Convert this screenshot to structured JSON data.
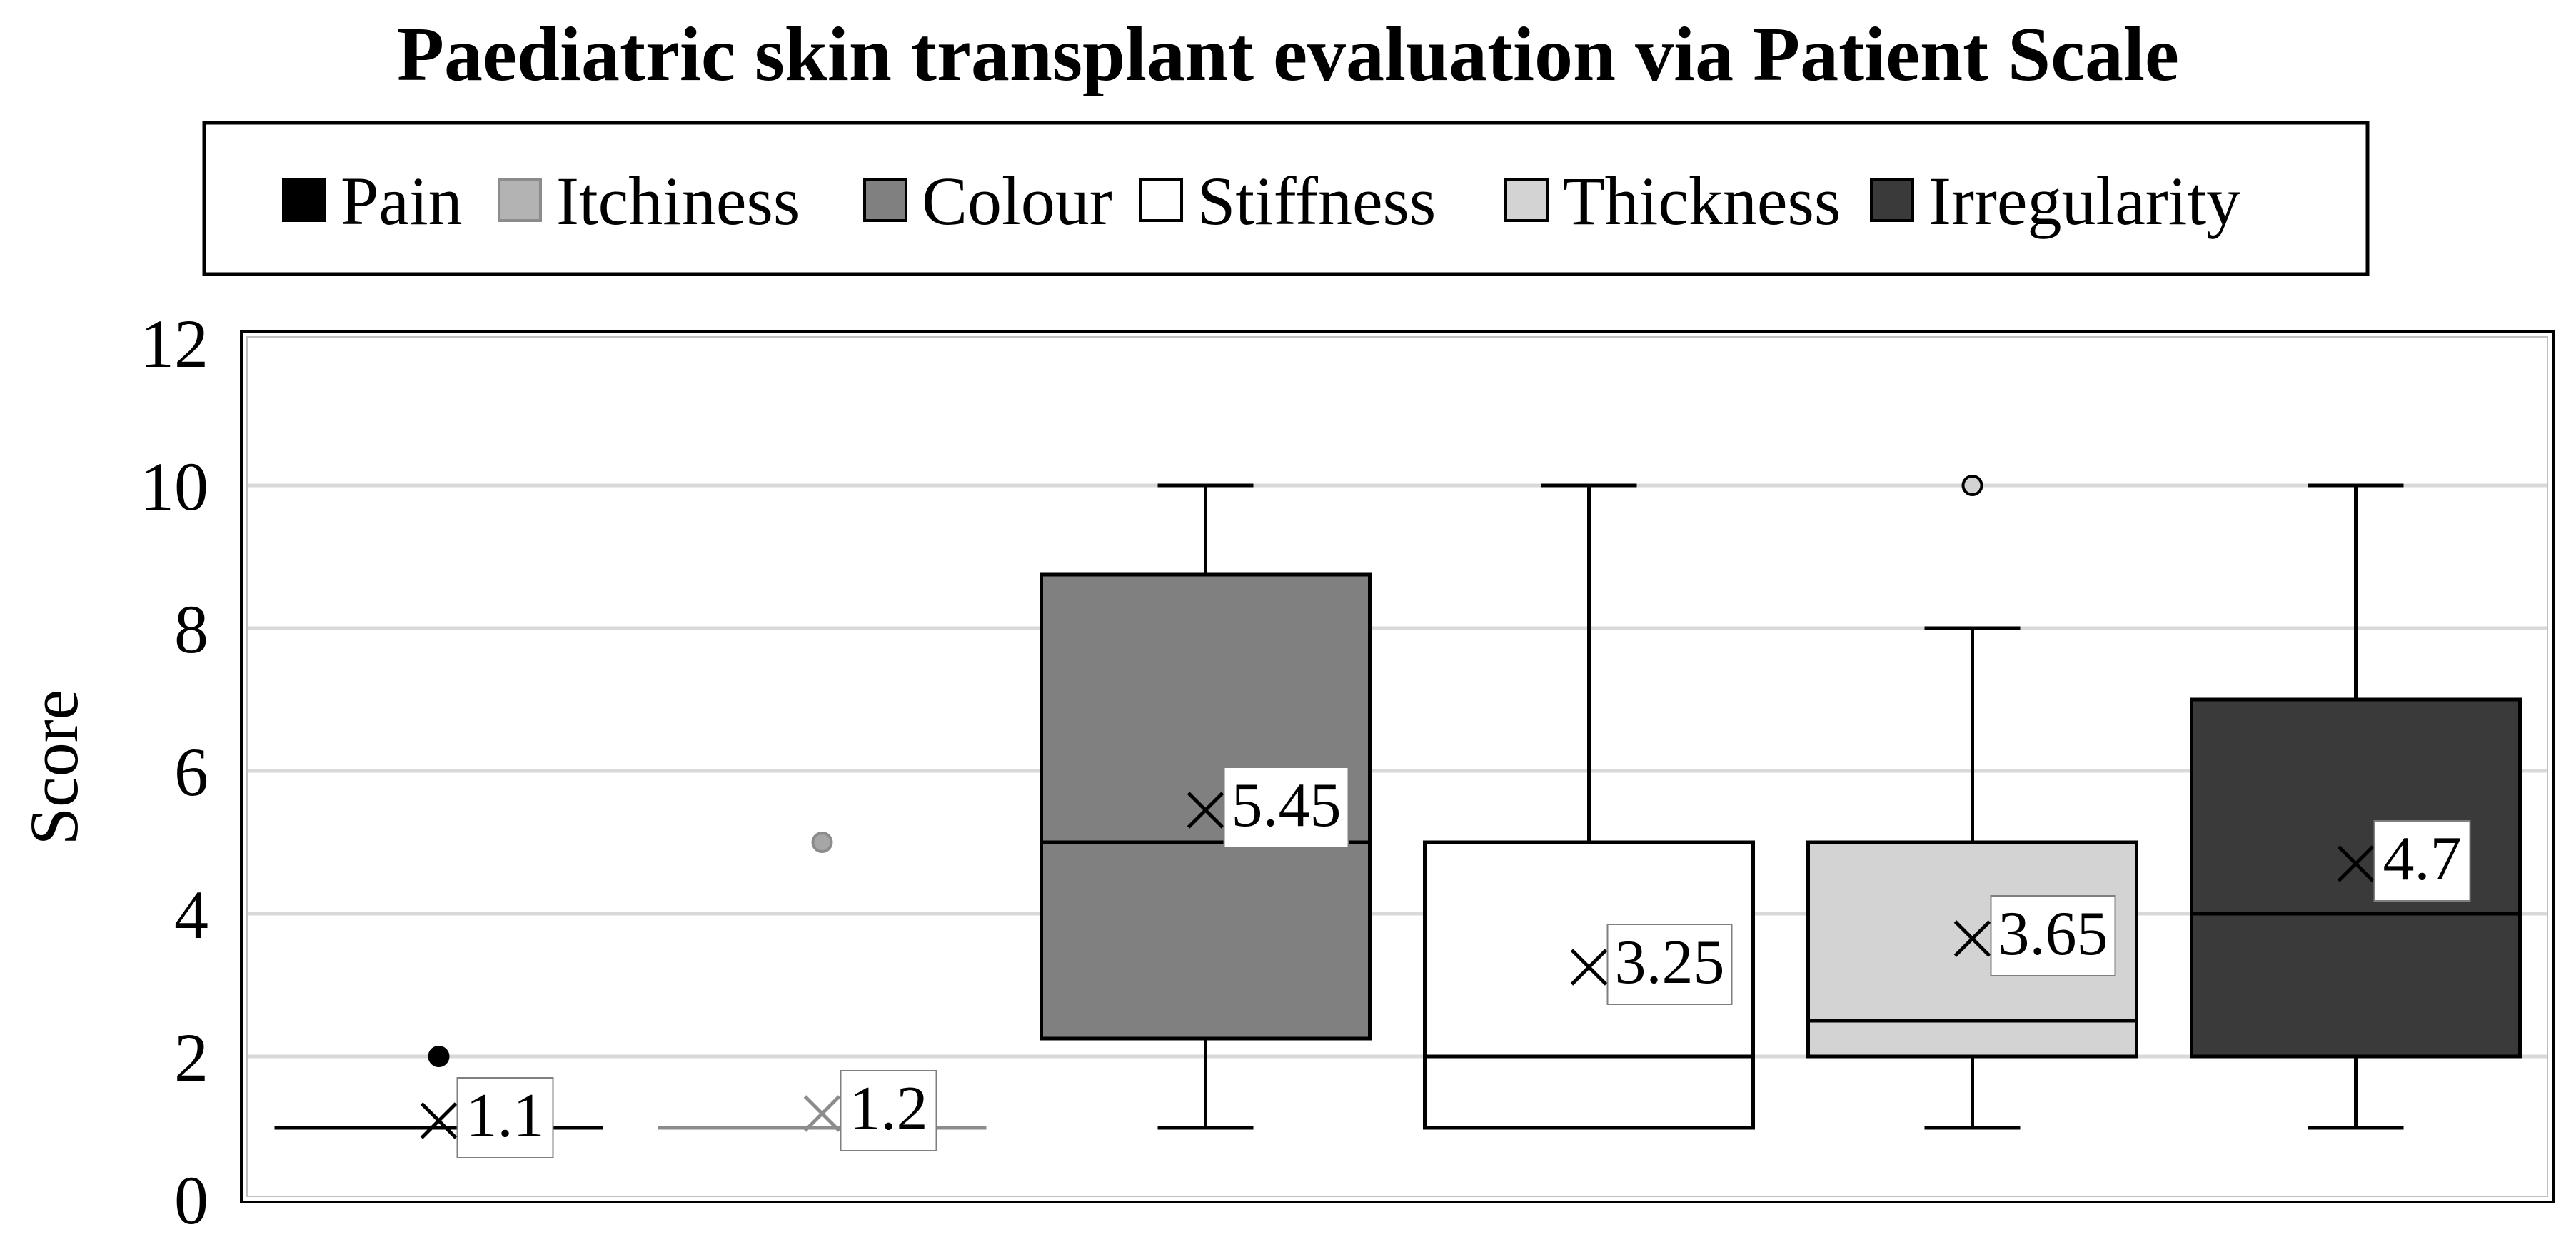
{
  "chart_data": {
    "type": "box",
    "title": "Paediatric skin transplant evaluation via Patient Scale",
    "ylabel": "Score",
    "xlabel": "",
    "ylim": [
      0,
      12
    ],
    "yticks": [
      0,
      2,
      4,
      6,
      8,
      10,
      12
    ],
    "grid": true,
    "legend_position": "top",
    "series": [
      {
        "name": "Pain",
        "color": "#000000",
        "whisker_color": "#000000",
        "q1": 1,
        "median": 1,
        "q3": 1,
        "whisker_low": 1,
        "whisker_high": 1,
        "mean": 1.1,
        "mean_label": "1.1",
        "outliers": [
          2
        ]
      },
      {
        "name": "Itchiness",
        "color": "#b3b3b3",
        "whisker_color": "#8c8c8c",
        "q1": 1,
        "median": 1,
        "q3": 1,
        "whisker_low": 1,
        "whisker_high": 1,
        "mean": 1.2,
        "mean_label": "1.2",
        "outliers": [
          5
        ]
      },
      {
        "name": "Colour",
        "color": "#808080",
        "whisker_color": "#000000",
        "q1": 2.25,
        "median": 5,
        "q3": 8.75,
        "whisker_low": 1,
        "whisker_high": 10,
        "mean": 5.45,
        "mean_label": "5.45",
        "outliers": []
      },
      {
        "name": "Stiffness",
        "color": "#ffffff",
        "whisker_color": "#000000",
        "q1": 1,
        "median": 2,
        "q3": 5,
        "whisker_low": 1,
        "whisker_high": 10,
        "mean": 3.25,
        "mean_label": "3.25",
        "outliers": []
      },
      {
        "name": "Thickness",
        "color": "#d3d3d3",
        "whisker_color": "#000000",
        "q1": 2,
        "median": 2.5,
        "q3": 5,
        "whisker_low": 1,
        "whisker_high": 8,
        "mean": 3.65,
        "mean_label": "3.65",
        "outliers": [
          10
        ]
      },
      {
        "name": "Irregularity",
        "color": "#3a3a3a",
        "whisker_color": "#000000",
        "q1": 2,
        "median": 4,
        "q3": 7,
        "whisker_low": 1,
        "whisker_high": 10,
        "mean": 4.7,
        "mean_label": "4.7",
        "outliers": []
      }
    ]
  }
}
